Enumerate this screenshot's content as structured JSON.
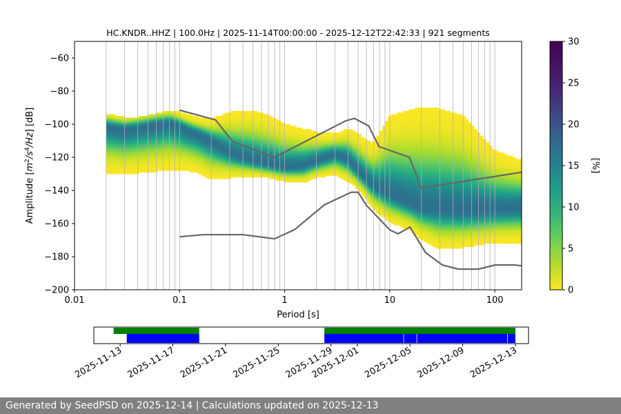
{
  "chart_data": [
    {
      "type": "heatmap",
      "title": "HC.KNDR..HHZ | 100.0Hz | 2025-11-14T00:00:00 - 2025-12-12T22:42:33 | 921 segments",
      "xlabel": "Period [s]",
      "ylabel": "Amplitude [m²/s⁴/Hz] [dB]",
      "x_scale": "log",
      "xlim": [
        0.01,
        180
      ],
      "ylim": [
        -200,
        -50
      ],
      "x_ticks": [
        0.01,
        0.1,
        1,
        10,
        100
      ],
      "x_tick_labels": [
        "0.01",
        "0.1",
        "1",
        "10",
        "100"
      ],
      "y_ticks": [
        -200,
        -180,
        -160,
        -140,
        -120,
        -100,
        -80,
        -60
      ],
      "y_tick_labels": [
        "−200",
        "−180",
        "−160",
        "−140",
        "−120",
        "−100",
        "−80",
        "−60"
      ],
      "grid": "vertical period gridlines",
      "colorbar": {
        "label": "[%]",
        "range": [
          0,
          30
        ],
        "ticks": [
          0,
          5,
          10,
          15,
          20,
          25,
          30
        ],
        "tick_labels": [
          "0",
          "5",
          "10",
          "15",
          "20",
          "25",
          "30"
        ],
        "colormap": "viridis_r"
      },
      "density_mode": {
        "period": [
          0.02,
          0.03,
          0.04,
          0.06,
          0.08,
          0.1,
          0.15,
          0.2,
          0.3,
          0.5,
          0.7,
          1,
          1.5,
          2,
          3,
          4,
          5,
          6,
          7,
          10,
          15,
          20,
          30,
          50,
          100,
          180
        ],
        "db": [
          -101,
          -103,
          -102,
          -100,
          -99,
          -101,
          -106,
          -110,
          -117,
          -122,
          -124,
          -126,
          -125,
          -122,
          -118,
          -121,
          -128,
          -133,
          -137,
          -142,
          -147,
          -150,
          -151,
          -152,
          -151,
          -150
        ],
        "upper": [
          -94,
          -96,
          -96,
          -94,
          -92,
          -93,
          -96,
          -97,
          -93,
          -92,
          -95,
          -100,
          -103,
          -105,
          -106,
          -103,
          -106,
          -110,
          -112,
          -95,
          -92,
          -90,
          -91,
          -95,
          -116,
          -122
        ],
        "lower": [
          -130,
          -131,
          -130,
          -129,
          -128,
          -128,
          -130,
          -134,
          -133,
          -132,
          -133,
          -135,
          -136,
          -133,
          -131,
          -135,
          -140,
          -146,
          -152,
          -160,
          -164,
          -170,
          -176,
          -175,
          -172,
          -172
        ]
      },
      "noise_models": [
        {
          "name": "NHNM",
          "period": [
            0.1,
            0.22,
            0.32,
            0.8,
            3.8,
            4.6,
            6.3,
            7.9,
            15.4,
            20,
            180
          ],
          "db": [
            -91.5,
            -97.4,
            -110.5,
            -120,
            -98,
            -96.5,
            -101,
            -113.5,
            -120,
            -138.5,
            -129
          ]
        },
        {
          "name": "NLNM",
          "period": [
            0.1,
            0.17,
            0.4,
            0.8,
            1.24,
            2.4,
            4.3,
            5,
            6,
            10,
            12,
            15.6,
            21.9,
            31.6,
            45,
            70,
            101,
            154,
            180
          ],
          "db": [
            -168,
            -166.7,
            -166.7,
            -169.2,
            -163.7,
            -148.6,
            -141.1,
            -141.1,
            -149,
            -163.8,
            -166.2,
            -162.1,
            -177.5,
            -185,
            -187.5,
            -187.5,
            -185,
            -185,
            -185.5
          ]
        }
      ]
    },
    {
      "type": "timeline",
      "date_range": [
        "2025-11-11",
        "2025-12-14"
      ],
      "tick_labels": [
        "2025-11-13",
        "2025-11-17",
        "2025-11-21",
        "2025-11-25",
        "2025-11-29",
        "2025-12-01",
        "2025-12-05",
        "2025-12-09",
        "2025-12-13"
      ],
      "tick_dates": [
        "2025-11-13",
        "2025-11-17",
        "2025-11-21",
        "2025-11-25",
        "2025-11-29",
        "2025-12-01",
        "2025-12-05",
        "2025-12-09",
        "2025-12-13"
      ],
      "data_available": [
        {
          "start": "2025-11-12T12:00",
          "end": "2025-11-19T00:00"
        },
        {
          "start": "2025-11-28T12:00",
          "end": "2025-12-13T00:00"
        }
      ],
      "psd_segments": [
        {
          "start": "2025-11-13T12:00",
          "end": "2025-11-19T00:00"
        },
        {
          "start": "2025-11-28T12:00",
          "end": "2025-12-04T12:00"
        },
        {
          "start": "2025-12-04T13:00",
          "end": "2025-12-05T12:00"
        },
        {
          "start": "2025-12-05T13:00",
          "end": "2025-12-12T09:00"
        },
        {
          "start": "2025-12-12T10:00",
          "end": "2025-12-13T00:00"
        }
      ],
      "colors": {
        "data_available": "#008000",
        "psd_segments": "#0000ff"
      }
    }
  ],
  "footer": {
    "text": "Generated by SeedPSD on 2025-12-14 | Calculations updated on 2025-12-13"
  }
}
